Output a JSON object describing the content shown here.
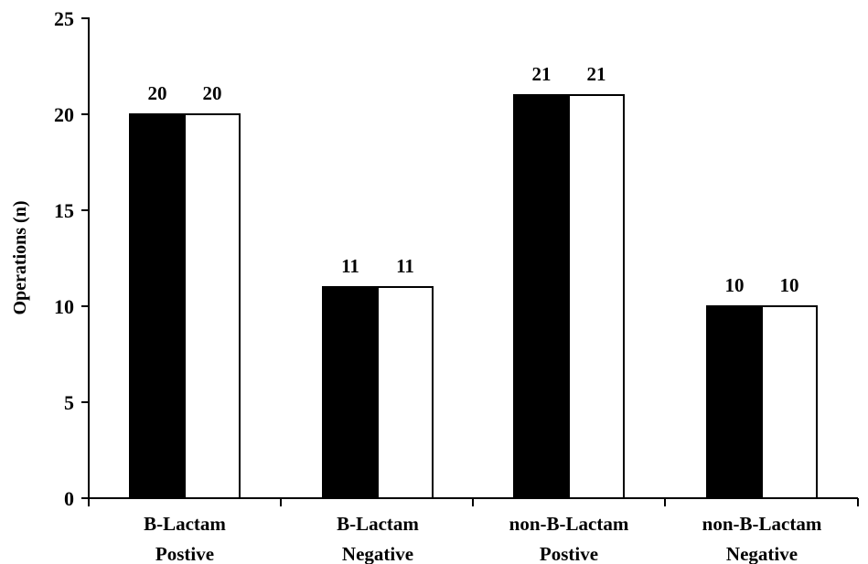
{
  "chart_data": {
    "type": "bar",
    "title": "",
    "xlabel": "",
    "ylabel": "Operations (n)",
    "ylim": [
      0,
      25
    ],
    "yticks": [
      0,
      5,
      10,
      15,
      20,
      25
    ],
    "grid": false,
    "legend": "none",
    "categories": [
      [
        "B-Lactam",
        "Postive"
      ],
      [
        "B-Lactam",
        "Negative"
      ],
      [
        "non-B-Lactam",
        "Postive"
      ],
      [
        "non-B-Lactam",
        "Negative"
      ]
    ],
    "series": [
      {
        "values": [
          20,
          11,
          21,
          10
        ],
        "color": "#000000"
      },
      {
        "values": [
          20,
          11,
          21,
          10
        ],
        "color": "#ffffff"
      }
    ],
    "data_labels": [
      [
        "20",
        "11",
        "21",
        "10"
      ],
      [
        "20",
        "11",
        "21",
        "10"
      ]
    ]
  }
}
